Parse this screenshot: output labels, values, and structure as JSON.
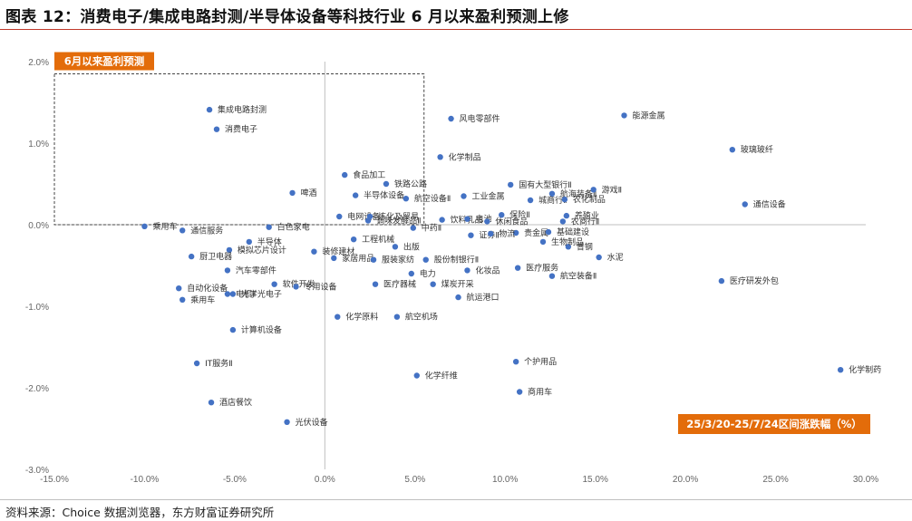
{
  "title": "图表 12：消费电子/集成电路封测/半导体设备等科技行业 6 月以来盈利预测上修",
  "source": "资料来源：Choice 数据浏览器，东方财富证券研究所",
  "colors": {
    "point": "#4472c4",
    "highlight": "#e36c0a",
    "axis": "#bfbfbf",
    "rule": "#c0392b"
  },
  "chart_data": {
    "type": "scatter",
    "xlabel": "25/3/20-25/7/24区间涨跌幅（%）",
    "ylabel": "",
    "xlim": [
      -15,
      30
    ],
    "ylim": [
      -3,
      2
    ],
    "xticks": [
      "-15.0%",
      "-10.0%",
      "-5.0%",
      "0.0%",
      "5.0%",
      "10.0%",
      "15.0%",
      "20.0%",
      "25.0%",
      "30.0%"
    ],
    "yticks": [
      "2.0%",
      "1.0%",
      "0.0%",
      "-1.0%",
      "-2.0%",
      "-3.0%"
    ],
    "highlight_box": {
      "label": "6月以来盈利预测",
      "x": [
        -15,
        5.5
      ],
      "y": [
        0,
        1.85
      ]
    },
    "points": [
      {
        "name": "集成电路封测",
        "x": -6.4,
        "y": 1.41
      },
      {
        "name": "消费电子",
        "x": -6.0,
        "y": 1.17
      },
      {
        "name": "风电零部件",
        "x": 7.0,
        "y": 1.3
      },
      {
        "name": "能源金属",
        "x": 16.6,
        "y": 1.34
      },
      {
        "name": "玻璃玻纤",
        "x": 22.6,
        "y": 0.92
      },
      {
        "name": "化学制品",
        "x": 6.4,
        "y": 0.83
      },
      {
        "name": "食品加工",
        "x": 1.1,
        "y": 0.61
      },
      {
        "name": "国有大型银行Ⅱ",
        "x": 10.3,
        "y": 0.49
      },
      {
        "name": "铁路公路",
        "x": 3.4,
        "y": 0.5
      },
      {
        "name": "航海装备Ⅱ",
        "x": 12.6,
        "y": 0.38
      },
      {
        "name": "游戏Ⅱ",
        "x": 14.9,
        "y": 0.43
      },
      {
        "name": "啤酒",
        "x": -1.8,
        "y": 0.39
      },
      {
        "name": "半导体设备",
        "x": 1.7,
        "y": 0.36
      },
      {
        "name": "航空设备Ⅱ",
        "x": 4.5,
        "y": 0.32
      },
      {
        "name": "工业金属",
        "x": 7.7,
        "y": 0.35
      },
      {
        "name": "城商行Ⅱ",
        "x": 11.4,
        "y": 0.3
      },
      {
        "name": "农化制品",
        "x": 13.3,
        "y": 0.31
      },
      {
        "name": "通信设备",
        "x": 23.3,
        "y": 0.25
      },
      {
        "name": "电网设备",
        "x": 0.8,
        "y": 0.1
      },
      {
        "name": "炼化及贸易",
        "x": 2.5,
        "y": 0.1
      },
      {
        "name": "养殖业",
        "x": 13.4,
        "y": 0.11
      },
      {
        "name": "调味发酵品Ⅱ",
        "x": 2.4,
        "y": 0.05
      },
      {
        "name": "饮料乳品",
        "x": 6.5,
        "y": 0.06
      },
      {
        "name": "电池",
        "x": 7.9,
        "y": 0.07
      },
      {
        "name": "保险Ⅱ",
        "x": 9.8,
        "y": 0.12
      },
      {
        "name": "休闲食品",
        "x": 9.0,
        "y": 0.04
      },
      {
        "name": "农商行Ⅱ",
        "x": 13.2,
        "y": 0.04
      },
      {
        "name": "白色家电",
        "x": -3.1,
        "y": -0.03
      },
      {
        "name": "中药Ⅱ",
        "x": 4.9,
        "y": -0.04
      },
      {
        "name": "乘用车",
        "x": -10.0,
        "y": -0.02
      },
      {
        "name": "通信服务",
        "x": -7.9,
        "y": -0.07
      },
      {
        "name": "贵金属",
        "x": 10.6,
        "y": -0.1
      },
      {
        "name": "基础建设",
        "x": 12.4,
        "y": -0.09
      },
      {
        "name": "半导体",
        "x": -4.2,
        "y": -0.21
      },
      {
        "name": "工程机械",
        "x": 1.6,
        "y": -0.18
      },
      {
        "name": "证券Ⅱ",
        "x": 8.1,
        "y": -0.13
      },
      {
        "name": "物流",
        "x": 9.2,
        "y": -0.11
      },
      {
        "name": "普钢",
        "x": 13.5,
        "y": -0.27
      },
      {
        "name": "模拟芯片设计",
        "x": -5.3,
        "y": -0.31
      },
      {
        "name": "装修建材",
        "x": -0.6,
        "y": -0.33
      },
      {
        "name": "出版",
        "x": 3.9,
        "y": -0.27
      },
      {
        "name": "生物制品",
        "x": 12.1,
        "y": -0.21
      },
      {
        "name": "厨卫电器",
        "x": -7.4,
        "y": -0.39
      },
      {
        "name": "家居用品",
        "x": 0.5,
        "y": -0.41
      },
      {
        "name": "服装家纺",
        "x": 2.7,
        "y": -0.43
      },
      {
        "name": "股份制银行Ⅱ",
        "x": 5.6,
        "y": -0.43
      },
      {
        "name": "水泥",
        "x": 15.2,
        "y": -0.4
      },
      {
        "name": "汽车零部件",
        "x": -5.4,
        "y": -0.56
      },
      {
        "name": "医疗服务",
        "x": 10.7,
        "y": -0.53
      },
      {
        "name": "化妆品",
        "x": 7.9,
        "y": -0.56
      },
      {
        "name": "电力",
        "x": 4.8,
        "y": -0.6
      },
      {
        "name": "航空装备Ⅱ",
        "x": 12.6,
        "y": -0.63
      },
      {
        "name": "医疗研发外包",
        "x": 22.0,
        "y": -0.69
      },
      {
        "name": "医疗器械",
        "x": 2.8,
        "y": -0.73
      },
      {
        "name": "煤炭开采",
        "x": 6.0,
        "y": -0.73
      },
      {
        "name": "软件开发",
        "x": -2.8,
        "y": -0.73
      },
      {
        "name": "自动化设备",
        "x": -8.1,
        "y": -0.78
      },
      {
        "name": "光学光电子",
        "x": -5.1,
        "y": -0.85
      },
      {
        "name": "专用设备",
        "x": -1.6,
        "y": -0.76
      },
      {
        "name": "乘用车",
        "x": -7.9,
        "y": -0.92
      },
      {
        "name": "电机Ⅱ",
        "x": -5.4,
        "y": -0.85
      },
      {
        "name": "航运港口",
        "x": 7.4,
        "y": -0.89
      },
      {
        "name": "化学原料",
        "x": 0.7,
        "y": -1.13
      },
      {
        "name": "航空机场",
        "x": 4.0,
        "y": -1.13
      },
      {
        "name": "计算机设备",
        "x": -5.1,
        "y": -1.29
      },
      {
        "name": "IT服务Ⅱ",
        "x": -7.1,
        "y": -1.7
      },
      {
        "name": "个护用品",
        "x": 10.6,
        "y": -1.68
      },
      {
        "name": "化学纤维",
        "x": 5.1,
        "y": -1.85
      },
      {
        "name": "化学制药",
        "x": 28.6,
        "y": -1.78
      },
      {
        "name": "商用车",
        "x": 10.8,
        "y": -2.05
      },
      {
        "name": "酒店餐饮",
        "x": -6.3,
        "y": -2.18
      },
      {
        "name": "光伏设备",
        "x": -2.1,
        "y": -2.42
      }
    ]
  }
}
